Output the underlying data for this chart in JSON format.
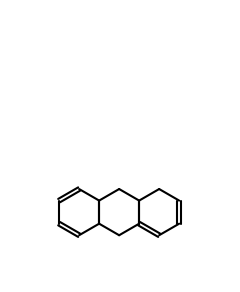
{
  "bg_color": "#ffffff",
  "line_color": "#000000",
  "line_width": 1.5,
  "figsize": [
    2.4,
    2.92
  ],
  "dpi": 100
}
